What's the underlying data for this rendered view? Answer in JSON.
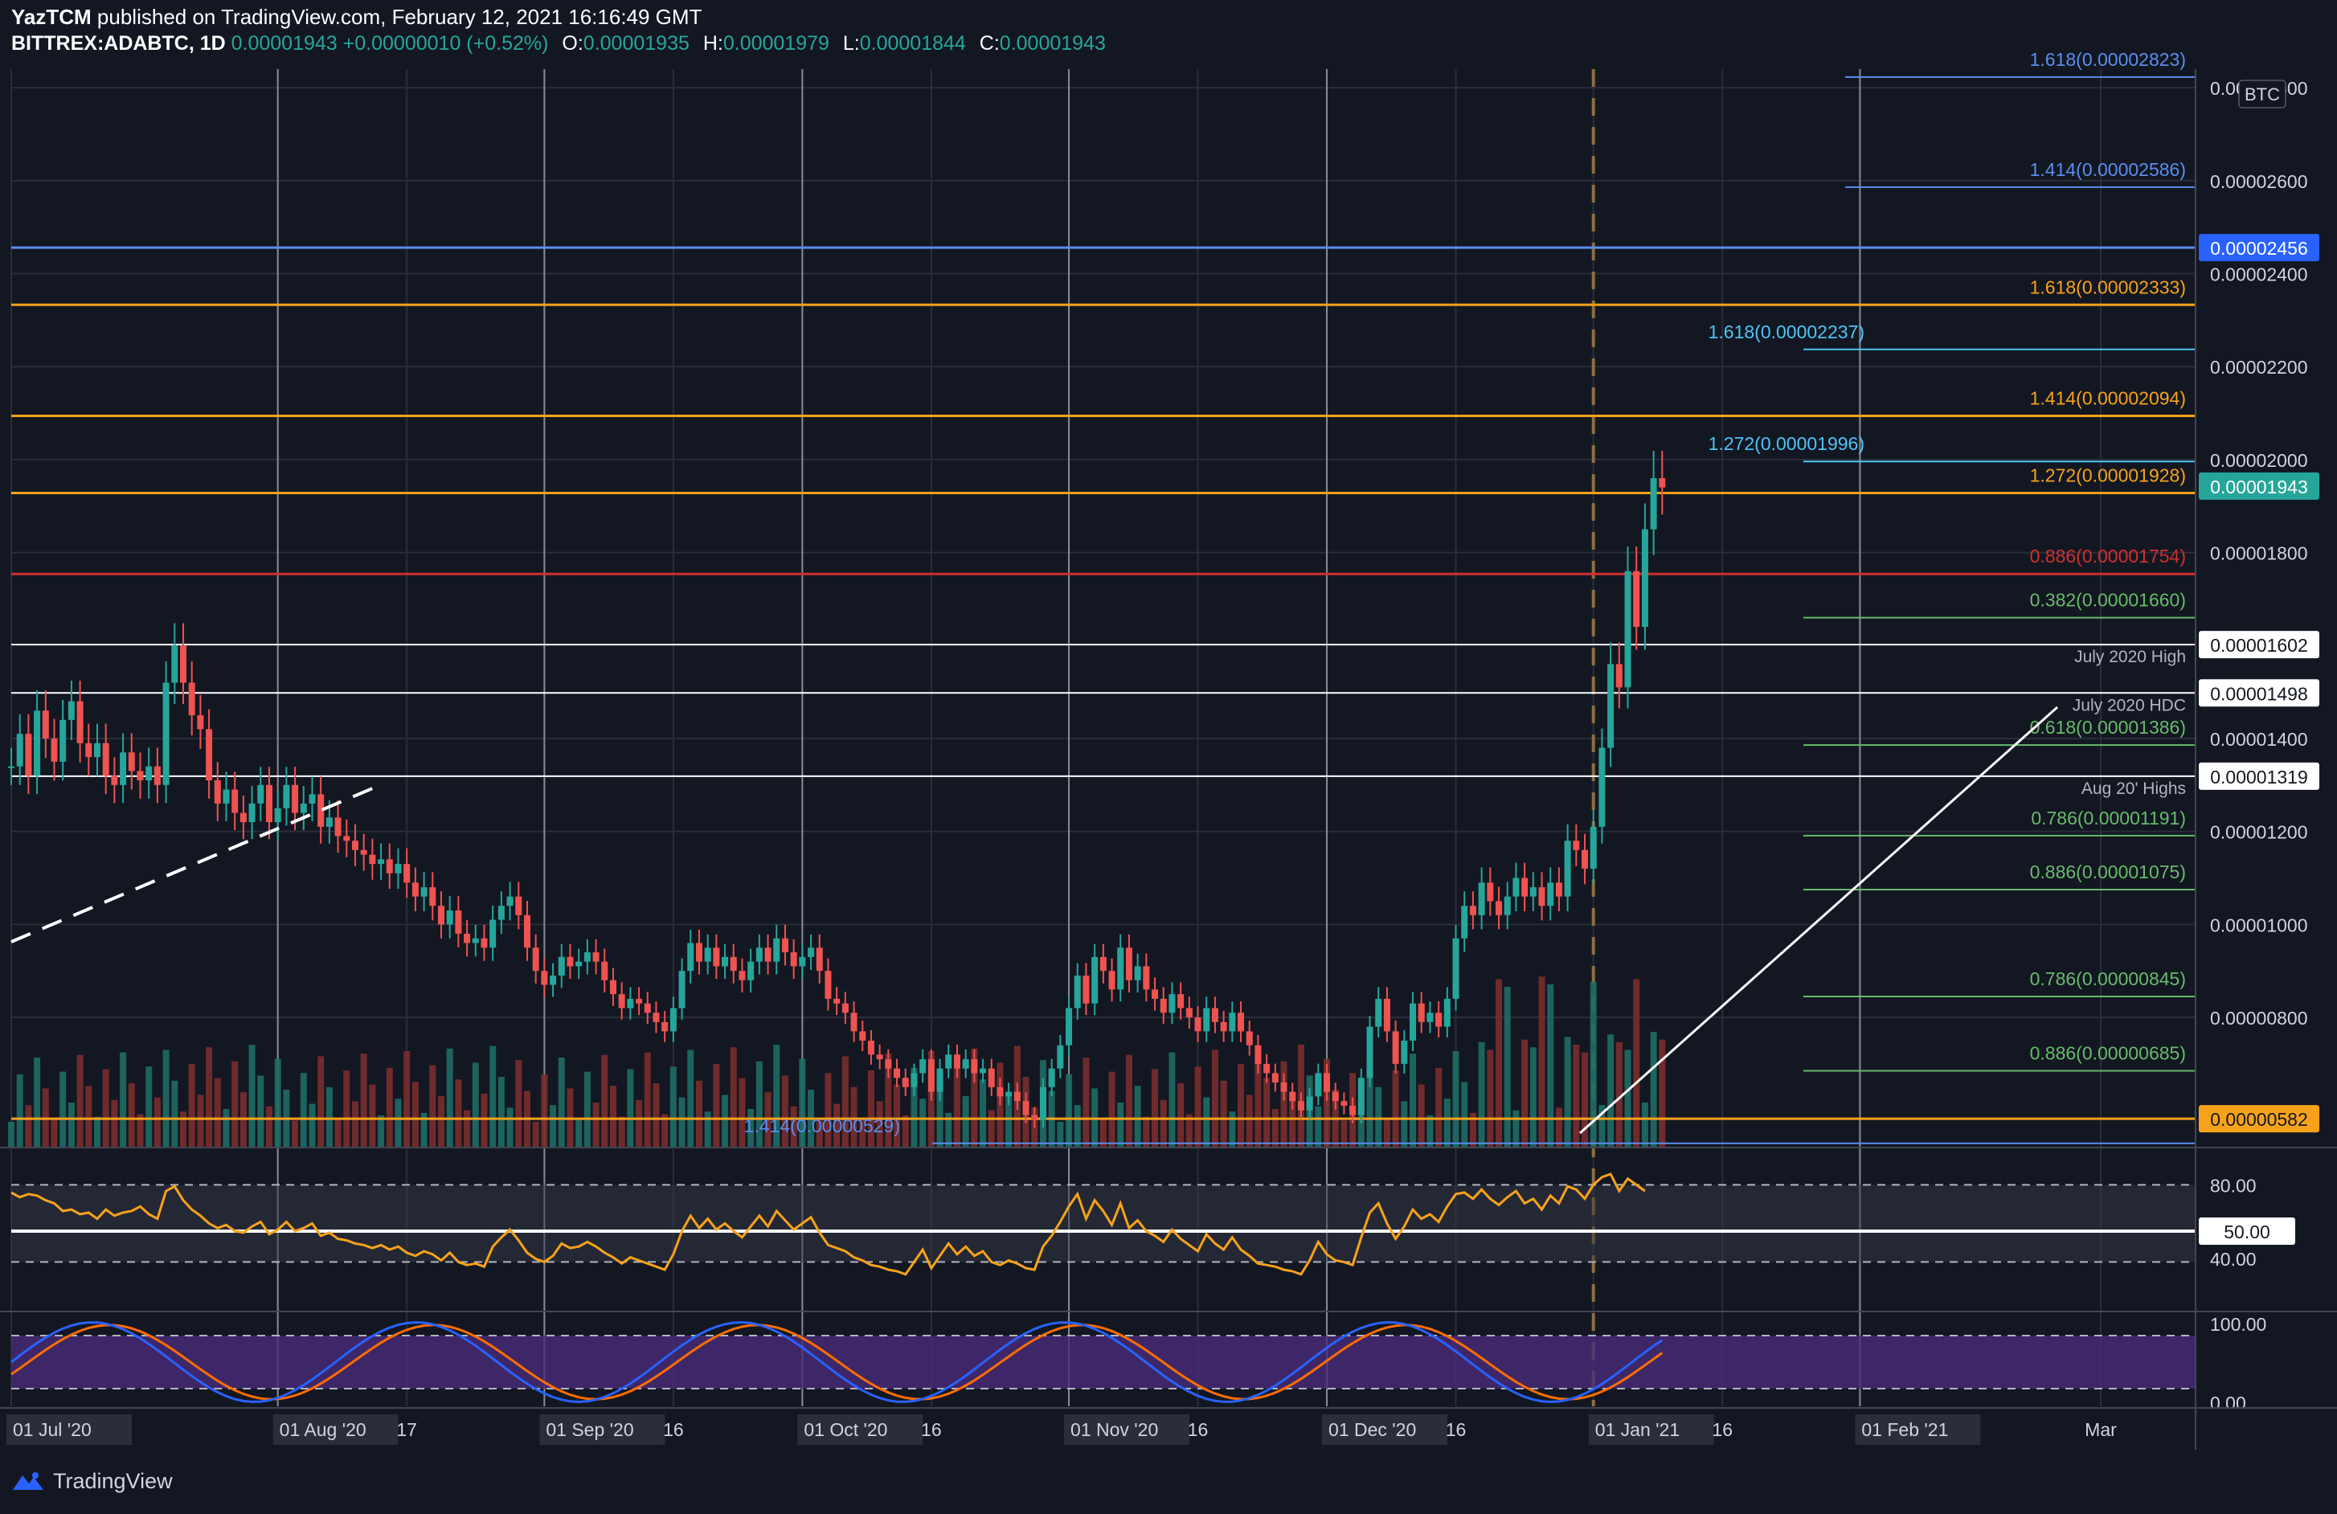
{
  "header": {
    "author": "YazTCM",
    "published": "published on TradingView.com, February 12, 2021 16:16:49 GMT",
    "symbol": "BITTREX:ADABTC, 1D",
    "last": "0.00001943",
    "change": "+0.00000010 (+0.52%)",
    "o_label": "O:",
    "o": "0.00001935",
    "h_label": "H:",
    "h": "0.00001979",
    "l_label": "L:",
    "l": "0.00001844",
    "c_label": "C:",
    "c": "0.00001943"
  },
  "footer": {
    "brand": "TradingView"
  },
  "colors": {
    "bg": "#131722",
    "up": "#26a69a",
    "down": "#ef5350",
    "orange": "#f7a21b",
    "red": "#d32f2f",
    "blue": "#5b8def",
    "cyan": "#4fc3f7",
    "green": "#66bb6a",
    "white": "#ffffff",
    "rsi": "#f7a21b",
    "stoch_k": "#2962ff",
    "stoch_d": "#ff6d00"
  },
  "chart_data": {
    "type": "candlestick",
    "currency_badge": "BTC",
    "ylim": [
      5.2e-06,
      2.84e-05
    ],
    "y_ticks": [
      "0.00002800",
      "0.00002600",
      "0.00002400",
      "0.00002200",
      "0.00002000",
      "0.00001800",
      "0.00001400",
      "0.00001200",
      "0.00001000",
      "0.00000800"
    ],
    "y_tick_values": [
      2.8e-05,
      2.6e-05,
      2.4e-05,
      2.2e-05,
      2e-05,
      1.8e-05,
      1.4e-05,
      1.2e-05,
      1e-05,
      8e-06
    ],
    "x_ticks": [
      "01 Jul '20",
      "01 Aug '20",
      "17",
      "01 Sep '20",
      "16",
      "01 Oct '20",
      "16",
      "01 Nov '20",
      "16",
      "01 Dec '20",
      "16",
      "01 Jan '21",
      "16",
      "01 Feb '21",
      "Mar"
    ],
    "x_tick_days": [
      0,
      31,
      46,
      62,
      77,
      92,
      107,
      123,
      138,
      153,
      168,
      184,
      199,
      215,
      243
    ],
    "horizontal_levels": [
      {
        "value": 2.456e-05,
        "label": "",
        "badge": "0.00002456",
        "color": "blue"
      },
      {
        "value": 2.333e-05,
        "label": "1.618(0.00002333)",
        "color": "orange"
      },
      {
        "value": 2.094e-05,
        "label": "1.414(0.00002094)",
        "color": "orange"
      },
      {
        "value": 1.928e-05,
        "label": "1.272(0.00001928)",
        "color": "orange"
      },
      {
        "value": 1.754e-05,
        "label": "0.886(0.00001754)",
        "color": "red"
      },
      {
        "value": 1.602e-05,
        "label": "",
        "badge": "0.00001602",
        "note": "July 2020 High",
        "color": "white"
      },
      {
        "value": 1.498e-05,
        "label": "",
        "badge": "0.00001498",
        "note": "July 2020 HDC",
        "color": "white"
      },
      {
        "value": 1.319e-05,
        "label": "",
        "badge": "0.00001319",
        "note": "Aug 20' Highs",
        "color": "white"
      },
      {
        "value": 5.82e-06,
        "label": "",
        "badge": "0.00000582",
        "color": "orange"
      }
    ],
    "fib_levels": [
      {
        "value": 2.823e-05,
        "label": "1.618(0.00002823)",
        "color": "blue"
      },
      {
        "value": 2.586e-05,
        "label": "1.414(0.00002586)",
        "color": "blue"
      },
      {
        "value": 2.237e-05,
        "label": "1.618(0.00002237)",
        "color": "cyan"
      },
      {
        "value": 1.996e-05,
        "label": "1.272(0.00001996)",
        "color": "cyan"
      },
      {
        "value": 1.66e-05,
        "label": "0.382(0.00001660)",
        "color": "green"
      },
      {
        "value": 1.386e-05,
        "label": "0.618(0.00001386)",
        "color": "green"
      },
      {
        "value": 1.191e-05,
        "label": "0.786(0.00001191)",
        "color": "green"
      },
      {
        "value": 1.075e-05,
        "label": "0.886(0.00001075)",
        "color": "green"
      },
      {
        "value": 8.45e-06,
        "label": "0.786(0.00000845)",
        "color": "green"
      },
      {
        "value": 6.85e-06,
        "label": "0.886(0.00000685)",
        "color": "green"
      },
      {
        "value": 5.29e-06,
        "label": "1.414(0.00000529)",
        "color": "blue"
      }
    ],
    "last_price_badge": "0.00001943",
    "candles_close": [
      13.4,
      14.1,
      13.2,
      14.6,
      14.0,
      13.5,
      14.4,
      14.8,
      13.9,
      13.6,
      13.9,
      13.2,
      13.0,
      13.7,
      13.3,
      13.1,
      13.4,
      13.0,
      15.2,
      16.0,
      15.2,
      14.5,
      14.2,
      13.1,
      12.6,
      12.9,
      12.4,
      12.2,
      12.6,
      13.0,
      12.2,
      12.5,
      13.0,
      12.4,
      12.6,
      12.8,
      12.1,
      12.3,
      11.9,
      11.8,
      11.6,
      11.5,
      11.3,
      11.4,
      11.1,
      11.3,
      10.9,
      10.6,
      10.8,
      10.4,
      10.0,
      10.3,
      9.8,
      9.6,
      9.7,
      9.5,
      10.1,
      10.4,
      10.6,
      10.2,
      9.5,
      9.0,
      8.7,
      8.9,
      9.3,
      9.1,
      9.2,
      9.4,
      9.2,
      8.8,
      8.5,
      8.2,
      8.4,
      8.3,
      8.1,
      7.9,
      7.7,
      8.2,
      9.0,
      9.6,
      9.2,
      9.5,
      9.1,
      9.3,
      9.0,
      8.8,
      9.2,
      9.5,
      9.2,
      9.7,
      9.4,
      9.1,
      9.3,
      9.5,
      9.0,
      8.4,
      8.3,
      8.1,
      7.7,
      7.5,
      7.2,
      7.1,
      6.9,
      6.7,
      6.5,
      6.8,
      7.1,
      6.4,
      6.9,
      7.2,
      6.9,
      7.1,
      6.8,
      6.9,
      6.5,
      6.3,
      6.4,
      6.2,
      5.9,
      5.8,
      6.5,
      6.9,
      7.4,
      8.2,
      8.9,
      8.3,
      9.3,
      9.0,
      8.6,
      9.5,
      8.8,
      9.1,
      8.6,
      8.4,
      8.1,
      8.5,
      8.2,
      8.0,
      7.7,
      8.2,
      7.9,
      7.7,
      8.1,
      7.7,
      7.4,
      7.0,
      6.8,
      6.6,
      6.4,
      6.2,
      6.0,
      6.3,
      6.8,
      6.4,
      6.2,
      6.1,
      5.9,
      6.7,
      7.8,
      8.4,
      7.7,
      7.0,
      7.5,
      8.3,
      7.9,
      8.1,
      7.8,
      8.4,
      9.7,
      10.4,
      10.2,
      10.9,
      10.5,
      10.2,
      10.6,
      11.0,
      10.6,
      10.8,
      10.4,
      10.9,
      10.6,
      11.8,
      11.6,
      11.2,
      12.1,
      13.8,
      15.6,
      15.1,
      17.6,
      16.4,
      18.5,
      19.6,
      19.4
    ]
  },
  "indicators": {
    "rsi": {
      "ticks": [
        "80.00",
        "50.00",
        "40.00"
      ],
      "badge": "50.00",
      "values": [
        75,
        72,
        74,
        73,
        70,
        68,
        63,
        64,
        61,
        62,
        58,
        64,
        60,
        62,
        63,
        66,
        61,
        58,
        76,
        79,
        70,
        64,
        60,
        55,
        52,
        54,
        50,
        49,
        53,
        56,
        48,
        51,
        56,
        50,
        52,
        55,
        47,
        49,
        45,
        44,
        42,
        41,
        39,
        41,
        38,
        40,
        36,
        34,
        37,
        35,
        31,
        36,
        30,
        28,
        29,
        27,
        40,
        46,
        51,
        44,
        36,
        32,
        30,
        34,
        42,
        39,
        40,
        43,
        40,
        36,
        33,
        29,
        33,
        31,
        29,
        27,
        25,
        35,
        50,
        60,
        52,
        58,
        51,
        55,
        50,
        46,
        53,
        60,
        53,
        63,
        57,
        51,
        55,
        59,
        49,
        41,
        39,
        37,
        33,
        31,
        28,
        27,
        25,
        24,
        22,
        30,
        38,
        26,
        34,
        42,
        35,
        40,
        34,
        37,
        30,
        28,
        31,
        29,
        26,
        25,
        40,
        47,
        56,
        66,
        74,
        58,
        70,
        63,
        54,
        68,
        52,
        57,
        50,
        47,
        43,
        51,
        45,
        41,
        37,
        48,
        42,
        38,
        46,
        38,
        34,
        29,
        28,
        27,
        25,
        24,
        22,
        31,
        43,
        35,
        31,
        30,
        28,
        46,
        62,
        68,
        55,
        45,
        53,
        64,
        58,
        61,
        56,
        66,
        74,
        75,
        71,
        77,
        71,
        67,
        72,
        76,
        68,
        71,
        64,
        73,
        68,
        79,
        77,
        71,
        80,
        85,
        87,
        76,
        84,
        80,
        76
      ]
    },
    "stoch_rsi": {
      "ticks": [
        "100.00",
        "0.00"
      ]
    }
  }
}
